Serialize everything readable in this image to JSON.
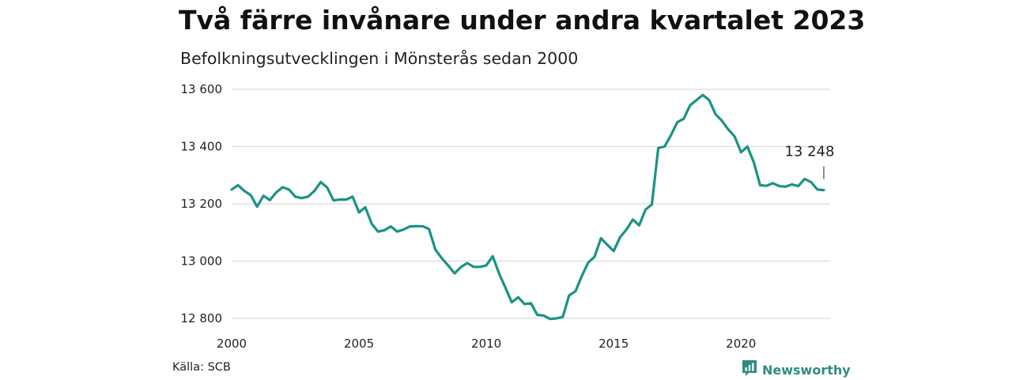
{
  "header": {
    "title": "Två färre invånare under andra kvartalet 2023",
    "subtitle": "Befolkningsutvecklingen i Mönsterås sedan 2000"
  },
  "footer": {
    "source": "Källa: SCB",
    "brand": "Newsworthy",
    "brand_icon": "newsworthy-logo-icon"
  },
  "colors": {
    "line": "#1a9384",
    "grid": "#dcdcdc",
    "brand": "#2f8d80"
  },
  "chart_data": {
    "type": "line",
    "title": "Två färre invånare under andra kvartalet 2023",
    "subtitle": "Befolkningsutvecklingen i Mönsterås sedan 2000",
    "xlabel": "",
    "ylabel": "",
    "xlim": [
      2000,
      2023.5
    ],
    "ylim": [
      12800,
      13600
    ],
    "y_ticks": [
      12800,
      13000,
      13200,
      13400,
      13600
    ],
    "y_tick_labels": [
      "12 800",
      "13 000",
      "13 200",
      "13 400",
      "13 600"
    ],
    "x_ticks": [
      2000,
      2005,
      2010,
      2015,
      2020
    ],
    "x_tick_labels": [
      "2000",
      "2005",
      "2010",
      "2015",
      "2020"
    ],
    "grid": "horizontal",
    "annotation": {
      "label": "13 248",
      "x": 2023.25,
      "y": 13248
    },
    "series": [
      {
        "x": [
          2000.0,
          2000.25,
          2000.5,
          2000.75,
          2001.0,
          2001.25,
          2001.5,
          2001.75,
          2002.0,
          2002.25,
          2002.5,
          2002.75,
          2003.0,
          2003.25,
          2003.5,
          2003.75,
          2004.0,
          2004.25,
          2004.5,
          2004.75,
          2005.0,
          2005.25,
          2005.5,
          2005.75,
          2006.0,
          2006.25,
          2006.5,
          2006.75,
          2007.0,
          2007.25,
          2007.5,
          2007.75,
          2008.0,
          2008.25,
          2008.5,
          2008.75,
          2009.0,
          2009.25,
          2009.5,
          2009.75,
          2010.0,
          2010.25,
          2010.5,
          2010.75,
          2011.0,
          2011.25,
          2011.5,
          2011.75,
          2012.0,
          2012.25,
          2012.5,
          2012.75,
          2013.0,
          2013.25,
          2013.5,
          2013.75,
          2014.0,
          2014.25,
          2014.5,
          2014.75,
          2015.0,
          2015.25,
          2015.5,
          2015.75,
          2016.0,
          2016.25,
          2016.5,
          2016.75,
          2017.0,
          2017.25,
          2017.5,
          2017.75,
          2018.0,
          2018.25,
          2018.5,
          2018.75,
          2019.0,
          2019.25,
          2019.5,
          2019.75,
          2020.0,
          2020.25,
          2020.5,
          2020.75,
          2021.0,
          2021.25,
          2021.5,
          2021.75,
          2022.0,
          2022.25,
          2022.5,
          2022.75,
          2023.0,
          2023.25
        ],
        "values": [
          13250,
          13265,
          13245,
          13230,
          13190,
          13228,
          13213,
          13240,
          13258,
          13250,
          13225,
          13220,
          13225,
          13245,
          13276,
          13257,
          13212,
          13215,
          13215,
          13225,
          13170,
          13188,
          13130,
          13103,
          13108,
          13121,
          13103,
          13110,
          13121,
          13122,
          13122,
          13112,
          13040,
          13010,
          12985,
          12957,
          12979,
          12993,
          12980,
          12980,
          12985,
          13017,
          12957,
          12907,
          12856,
          12874,
          12850,
          12853,
          12812,
          12810,
          12798,
          12800,
          12805,
          12880,
          12895,
          12948,
          12995,
          13015,
          13080,
          13057,
          13035,
          13083,
          13110,
          13145,
          13125,
          13180,
          13198,
          13395,
          13400,
          13440,
          13485,
          13497,
          13544,
          13562,
          13580,
          13562,
          13513,
          13490,
          13460,
          13435,
          13380,
          13400,
          13345,
          13265,
          13263,
          13272,
          13262,
          13260,
          13268,
          13262,
          13287,
          13276,
          13250,
          13248
        ]
      }
    ]
  }
}
